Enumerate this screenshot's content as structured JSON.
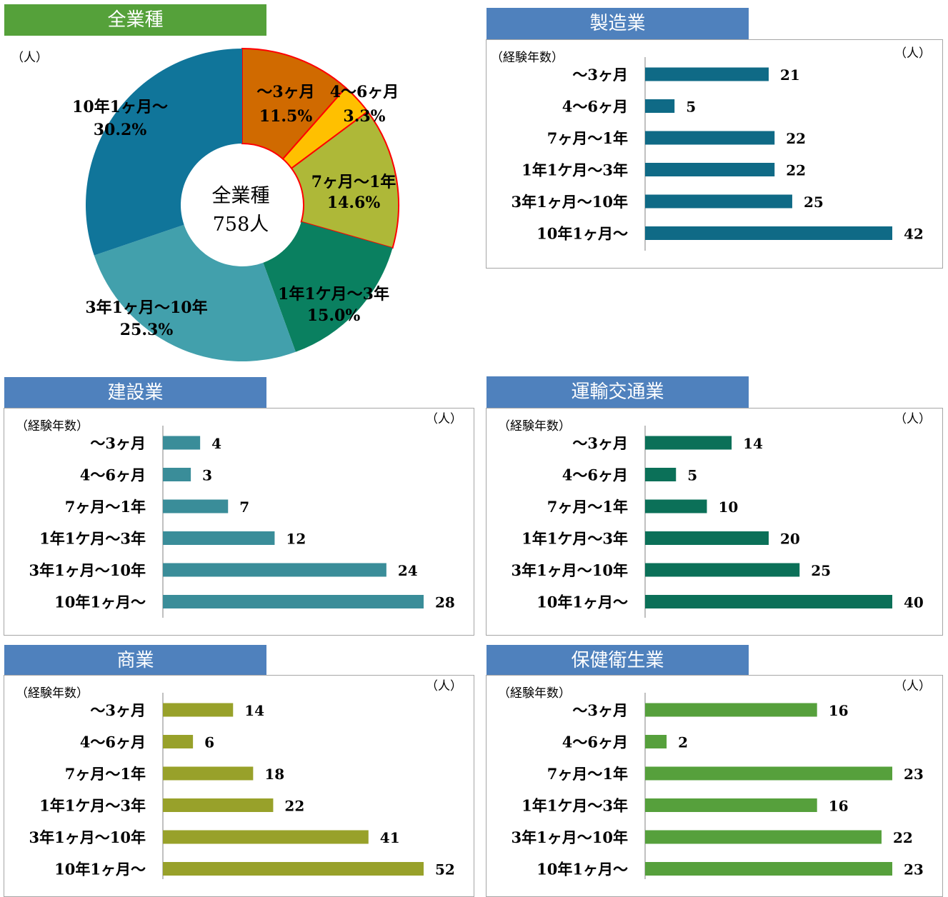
{
  "charts": {
    "all": {
      "banner": "全業種",
      "unit": "（人）",
      "center_line1": "全業種",
      "center_line2": "758人"
    },
    "manufacturing": {
      "banner": "製造業",
      "axis_title": "（経験年数）",
      "unit": "（人）"
    },
    "construction": {
      "banner": "建設業",
      "axis_title": "（経験年数）",
      "unit": "（人）"
    },
    "transport": {
      "banner": "運輸交通業",
      "axis_title": "（経験年数）",
      "unit": "（人）"
    },
    "commerce": {
      "banner": "商業",
      "axis_title": "（経験年数）",
      "unit": "（人）"
    },
    "health": {
      "banner": "保健衛生業",
      "axis_title": "（経験年数）",
      "unit": "（人）"
    }
  },
  "chart_data": [
    {
      "id": "all",
      "type": "pie",
      "title": "全業種",
      "total_label": "758人",
      "slices": [
        {
          "name": "～3ヶ月",
          "label_line1": "～3ヶ月",
          "label_line2": "11.5%",
          "value": 11.5,
          "color": "#d06a00"
        },
        {
          "name": "4～6ヶ月",
          "label_line1": "4～6ヶ月",
          "label_line2": "3.3%",
          "value": 3.3,
          "color": "#ffc000"
        },
        {
          "name": "7ヶ月～1年",
          "label_line1": "7ヶ月～1年",
          "label_line2": "14.6%",
          "value": 14.6,
          "color": "#aeb838"
        },
        {
          "name": "1年1ケ月～3年",
          "label_line1": "1年1ケ月～3年",
          "label_line2": "15.0%",
          "value": 15.0,
          "color": "#0a8060"
        },
        {
          "name": "3年1ヶ月～10年",
          "label_line1": "3年1ヶ月～10年",
          "label_line2": "25.3%",
          "value": 25.3,
          "color": "#42a0ac"
        },
        {
          "name": "10年1ヶ月～",
          "label_line1": "10年1ヶ月～",
          "label_line2": "30.2%",
          "value": 30.2,
          "color": "#10759a"
        }
      ]
    },
    {
      "id": "manufacturing",
      "type": "bar",
      "orientation": "horizontal",
      "title": "製造業",
      "categories": [
        "～3ヶ月",
        "4～6ヶ月",
        "7ヶ月～1年",
        "1年1ケ月～3年",
        "3年1ヶ月～10年",
        "10年1ヶ月～"
      ],
      "values": [
        21,
        5,
        22,
        22,
        25,
        42
      ],
      "color": "#0f6a86",
      "xmax": 42
    },
    {
      "id": "construction",
      "type": "bar",
      "orientation": "horizontal",
      "title": "建設業",
      "categories": [
        "～3ヶ月",
        "4～6ヶ月",
        "7ヶ月～1年",
        "1年1ケ月～3年",
        "3年1ヶ月～10年",
        "10年1ヶ月～"
      ],
      "values": [
        4,
        3,
        7,
        12,
        24,
        28
      ],
      "color": "#3a8d99",
      "xmax": 28
    },
    {
      "id": "transport",
      "type": "bar",
      "orientation": "horizontal",
      "title": "運輸交通業",
      "categories": [
        "～3ヶ月",
        "4～6ヶ月",
        "7ヶ月～1年",
        "1年1ケ月～3年",
        "3年1ヶ月～10年",
        "10年1ヶ月～"
      ],
      "values": [
        14,
        5,
        10,
        20,
        25,
        40
      ],
      "color": "#0b7058",
      "xmax": 40
    },
    {
      "id": "commerce",
      "type": "bar",
      "orientation": "horizontal",
      "title": "商業",
      "categories": [
        "～3ヶ月",
        "4～6ヶ月",
        "7ヶ月～1年",
        "1年1ケ月～3年",
        "3年1ヶ月～10年",
        "10年1ヶ月～"
      ],
      "values": [
        14,
        6,
        18,
        22,
        41,
        52
      ],
      "color": "#98a12a",
      "xmax": 52
    },
    {
      "id": "health",
      "type": "bar",
      "orientation": "horizontal",
      "title": "保健衛生業",
      "categories": [
        "～3ヶ月",
        "4～6ヶ月",
        "7ヶ月～1年",
        "1年1ケ月～3年",
        "3年1ヶ月～10年",
        "10年1ヶ月～"
      ],
      "values": [
        16,
        2,
        23,
        16,
        22,
        23
      ],
      "color": "#56a03c",
      "xmax": 23
    }
  ]
}
